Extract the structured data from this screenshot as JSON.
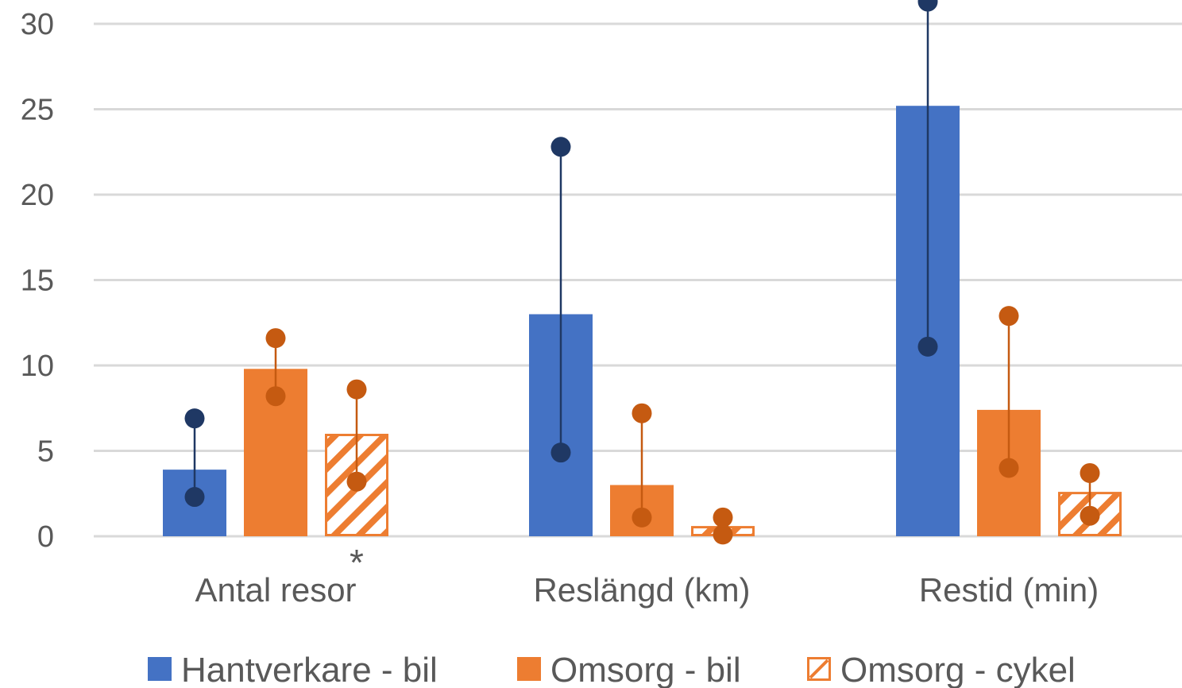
{
  "chart_data": {
    "type": "bar",
    "categories": [
      "Antal resor",
      "Reslängd (km)",
      "Restid (min)"
    ],
    "ylim": [
      0,
      30
    ],
    "yticks": [
      0,
      5,
      10,
      15,
      20,
      25,
      30
    ],
    "grid": true,
    "legend_position": "bottom",
    "series": [
      {
        "name": "Hantverkare - bil",
        "color": "#4472C4",
        "error_color": "#1F3864",
        "pattern": "solid",
        "values": [
          3.9,
          13.0,
          25.2
        ],
        "error_low": [
          2.3,
          4.9,
          11.1
        ],
        "error_high": [
          6.9,
          22.8,
          31.3
        ]
      },
      {
        "name": "Omsorg - bil",
        "color": "#ED7D31",
        "error_color": "#C55A11",
        "pattern": "solid",
        "values": [
          9.8,
          3.0,
          7.4
        ],
        "error_low": [
          8.2,
          1.1,
          4.0
        ],
        "error_high": [
          11.6,
          7.2,
          12.9
        ]
      },
      {
        "name": "Omsorg - cykel",
        "color": "#ED7D31",
        "error_color": "#C55A11",
        "pattern": "hatched",
        "values": [
          6.0,
          0.6,
          2.6
        ],
        "error_low": [
          3.2,
          0.1,
          1.2
        ],
        "error_high": [
          8.6,
          1.1,
          3.7
        ]
      }
    ],
    "annotations": [
      {
        "text": "*",
        "category_index": 0,
        "series_index": 2
      }
    ]
  }
}
